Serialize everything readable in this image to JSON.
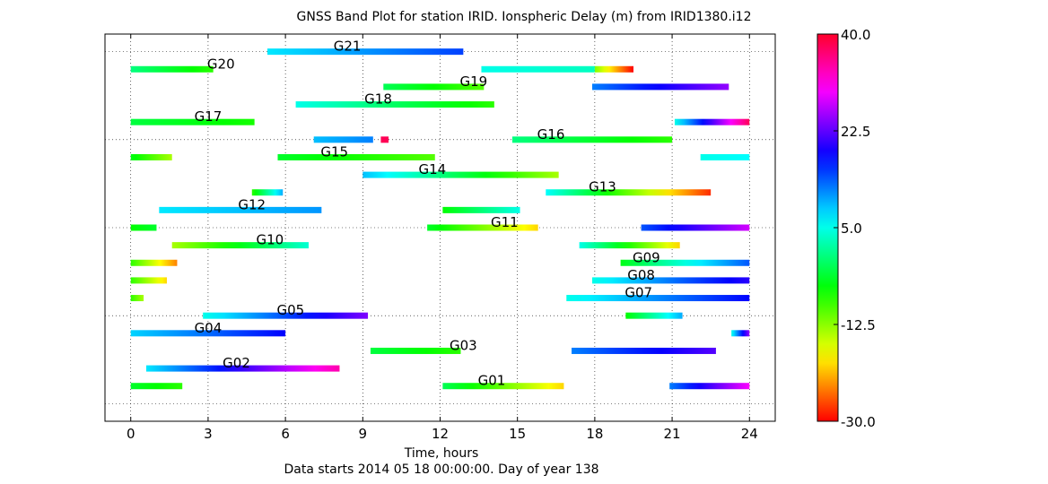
{
  "chart_data": {
    "type": "band",
    "title": "GNSS Band Plot for station IRID.   Ionspheric Delay (m) from IRID1380.i12",
    "xlabel": "Time, hours",
    "subtitle": "Data starts 2014 05 18 00:00:00.  Day of year 138",
    "xlim": [
      -1,
      25
    ],
    "xticks": [
      0,
      3,
      6,
      9,
      12,
      15,
      18,
      21,
      24
    ],
    "ylim": [
      -1,
      21
    ],
    "colorbar": {
      "min": -30.0,
      "max": 40.0,
      "ticks": [
        "40.0",
        "22.5",
        "5.0",
        "-12.5",
        "-30.0"
      ],
      "tick_values": [
        40.0,
        22.5,
        5.0,
        -12.5,
        -30.0
      ]
    },
    "satellites": [
      {
        "id": "G21",
        "row": 20,
        "label": "G21",
        "label_x": 8.4,
        "segments": [
          {
            "x0": 5.3,
            "x1": 12.9,
            "v0": 7,
            "v1": 15
          }
        ]
      },
      {
        "id": "G20",
        "row": 19,
        "label": "G20",
        "label_x": 3.5,
        "segments": [
          {
            "x0": 0.0,
            "x1": 3.2,
            "v0": 0,
            "v1": -8
          },
          {
            "x0": 13.6,
            "x1": 18.0,
            "v0": 5,
            "v1": 3
          },
          {
            "x0": 18.0,
            "x1": 19.5,
            "v0": -12,
            "v1": -30
          }
        ]
      },
      {
        "id": "G19",
        "row": 18,
        "label": "G19",
        "label_x": 13.3,
        "segments": [
          {
            "x0": 9.8,
            "x1": 13.7,
            "v0": -2,
            "v1": -10
          },
          {
            "x0": 17.9,
            "x1": 23.2,
            "v0": 12,
            "v1": 25
          }
        ]
      },
      {
        "id": "G18",
        "row": 17,
        "label": "G18",
        "label_x": 9.6,
        "segments": [
          {
            "x0": 6.4,
            "x1": 14.1,
            "v0": 5,
            "v1": -8
          }
        ]
      },
      {
        "id": "G17",
        "row": 16,
        "label": "G17",
        "label_x": 3.0,
        "segments": [
          {
            "x0": 0.0,
            "x1": 4.8,
            "v0": -3,
            "v1": -7
          },
          {
            "x0": 21.1,
            "x1": 24.0,
            "v0": 5,
            "v1": 38
          }
        ]
      },
      {
        "id": "G16",
        "row": 15,
        "label": "G16",
        "label_x": 16.3,
        "segments": [
          {
            "x0": 7.1,
            "x1": 9.4,
            "v0": 9,
            "v1": 12
          },
          {
            "x0": 9.7,
            "x1": 10.0,
            "v0": 38,
            "v1": 38
          },
          {
            "x0": 14.8,
            "x1": 21.0,
            "v0": 0,
            "v1": -8
          }
        ]
      },
      {
        "id": "G15",
        "row": 14,
        "label": "G15",
        "label_x": 7.9,
        "segments": [
          {
            "x0": 0.0,
            "x1": 1.6,
            "v0": -5,
            "v1": -14
          },
          {
            "x0": 5.7,
            "x1": 11.8,
            "v0": -4,
            "v1": -10
          },
          {
            "x0": 22.1,
            "x1": 24.0,
            "v0": 5,
            "v1": 6
          }
        ]
      },
      {
        "id": "G14",
        "row": 13,
        "label": "G14",
        "label_x": 11.7,
        "segments": [
          {
            "x0": 9.0,
            "x1": 16.6,
            "v0": 9,
            "v1": -14
          }
        ]
      },
      {
        "id": "G13",
        "row": 12,
        "label": "G13",
        "label_x": 18.3,
        "segments": [
          {
            "x0": 4.7,
            "x1": 5.9,
            "v0": -8,
            "v1": 10
          },
          {
            "x0": 16.1,
            "x1": 22.5,
            "v0": 6,
            "v1": -28
          }
        ]
      },
      {
        "id": "G12",
        "row": 11,
        "label": "G12",
        "label_x": 4.7,
        "segments": [
          {
            "x0": 1.1,
            "x1": 7.4,
            "v0": 7,
            "v1": 11
          },
          {
            "x0": 12.1,
            "x1": 15.1,
            "v0": -6,
            "v1": 5
          }
        ]
      },
      {
        "id": "G11",
        "row": 10,
        "label": "G11",
        "label_x": 14.5,
        "segments": [
          {
            "x0": 0.0,
            "x1": 1.0,
            "v0": -6,
            "v1": -4
          },
          {
            "x0": 11.5,
            "x1": 15.8,
            "v0": -4,
            "v1": -20
          },
          {
            "x0": 19.8,
            "x1": 24.0,
            "v0": 14,
            "v1": 28
          }
        ]
      },
      {
        "id": "G10",
        "row": 9,
        "label": "G10",
        "label_x": 5.4,
        "segments": [
          {
            "x0": 1.6,
            "x1": 6.9,
            "v0": -14,
            "v1": 4
          },
          {
            "x0": 17.4,
            "x1": 21.3,
            "v0": 5,
            "v1": -20
          }
        ]
      },
      {
        "id": "G09",
        "row": 8,
        "label": "G09",
        "label_x": 20.0,
        "segments": [
          {
            "x0": 0.0,
            "x1": 1.8,
            "v0": -8,
            "v1": -24
          },
          {
            "x0": 19.0,
            "x1": 24.0,
            "v0": -5,
            "v1": 14
          }
        ]
      },
      {
        "id": "G08",
        "row": 7,
        "label": "G08",
        "label_x": 19.8,
        "segments": [
          {
            "x0": 0.0,
            "x1": 1.4,
            "v0": -8,
            "v1": -20
          },
          {
            "x0": 17.9,
            "x1": 24.0,
            "v0": 5,
            "v1": 20
          }
        ]
      },
      {
        "id": "G07",
        "row": 6,
        "label": "G07",
        "label_x": 19.7,
        "segments": [
          {
            "x0": 0.0,
            "x1": 0.5,
            "v0": -8,
            "v1": -14
          },
          {
            "x0": 16.9,
            "x1": 24.0,
            "v0": 5,
            "v1": 18
          }
        ]
      },
      {
        "id": "G05",
        "row": 5,
        "label": "G05",
        "label_x": 6.2,
        "segments": [
          {
            "x0": 2.8,
            "x1": 9.2,
            "v0": 5,
            "v1": 24
          },
          {
            "x0": 19.2,
            "x1": 21.4,
            "v0": -6,
            "v1": 10
          }
        ]
      },
      {
        "id": "G04",
        "row": 4,
        "label": "G04",
        "label_x": 3.0,
        "segments": [
          {
            "x0": 0.0,
            "x1": 6.0,
            "v0": 8,
            "v1": 18
          },
          {
            "x0": 23.3,
            "x1": 24.0,
            "v0": 5,
            "v1": 25
          }
        ]
      },
      {
        "id": "G03",
        "row": 3,
        "label": "G03",
        "label_x": 12.9,
        "segments": [
          {
            "x0": 9.3,
            "x1": 12.8,
            "v0": -3,
            "v1": -8
          },
          {
            "x0": 17.1,
            "x1": 22.7,
            "v0": 12,
            "v1": 22
          }
        ]
      },
      {
        "id": "G02",
        "row": 2,
        "label": "G02",
        "label_x": 4.1,
        "segments": [
          {
            "x0": 0.6,
            "x1": 8.1,
            "v0": 7,
            "v1": 34
          }
        ]
      },
      {
        "id": "G01",
        "row": 1,
        "label": "G01",
        "label_x": 14.0,
        "segments": [
          {
            "x0": 0.0,
            "x1": 2.0,
            "v0": -4,
            "v1": -8
          },
          {
            "x0": 12.1,
            "x1": 16.8,
            "v0": -2,
            "v1": -20
          },
          {
            "x0": 20.9,
            "x1": 24.0,
            "v0": 12,
            "v1": 30
          }
        ]
      }
    ]
  }
}
